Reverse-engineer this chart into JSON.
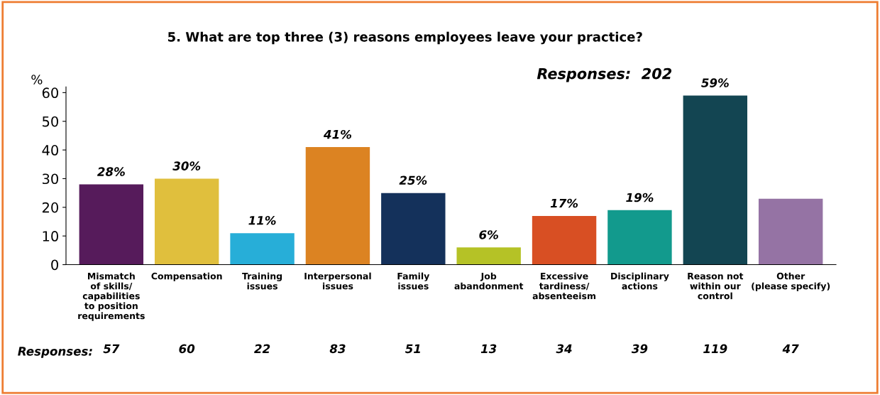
{
  "chart_data": {
    "type": "bar",
    "title": "5. What are top three (3) reasons employees leave your practice?",
    "ylabel": "%",
    "categories": [
      "Mismatch\nof skills/\ncapabilities\nto position\nrequirements",
      "Compensation",
      "Training\nissues",
      "Interpersonal\nissues",
      "Family\nissues",
      "Job\nabandonment",
      "Excessive\ntardiness/\nabsenteeism",
      "Disciplinary\nactions",
      "Reason not\nwithin our\ncontrol",
      "Other\n(please specify)"
    ],
    "values": [
      28,
      30,
      11,
      41,
      25,
      6,
      17,
      19,
      59,
      23
    ],
    "colors": [
      "#561b5b",
      "#e0bf3d",
      "#27aed8",
      "#dc8322",
      "#14315b",
      "#b5c226",
      "#d84f23",
      "#129a8d",
      "#134552",
      "#9573a4"
    ],
    "value_labels": [
      "28%",
      "30%",
      "11%",
      "41%",
      "25%",
      "6%",
      "17%",
      "19%",
      "59%",
      null
    ],
    "ylim": [
      0,
      62
    ],
    "yticks": [
      0,
      10,
      20,
      30,
      40,
      50,
      60
    ],
    "grid": false,
    "annotations": [
      "Responses:  202",
      "Responses:",
      "57",
      "60",
      "22",
      "83",
      "51",
      "13",
      "34",
      "39",
      "119",
      "47"
    ]
  }
}
